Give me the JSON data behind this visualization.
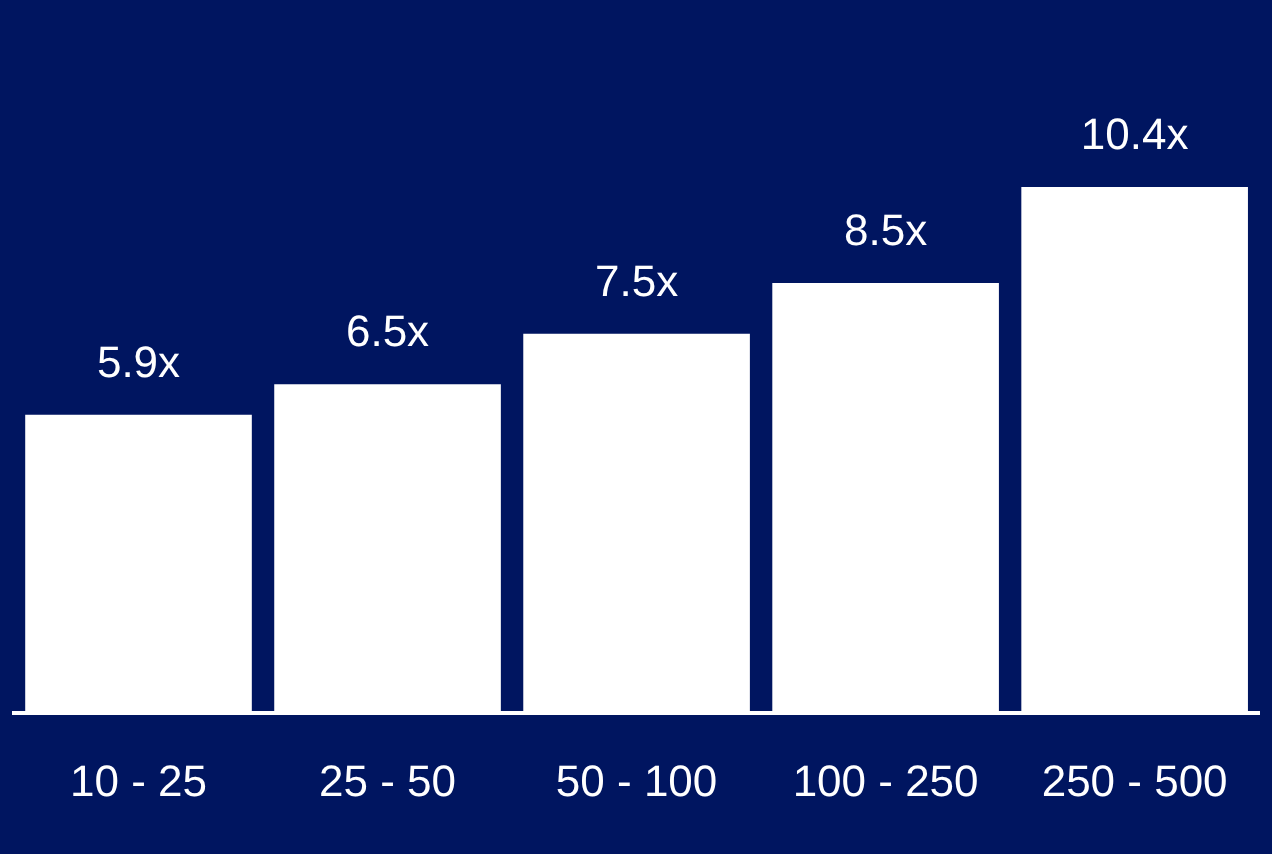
{
  "chart_data": {
    "type": "bar",
    "categories": [
      "10 - 25",
      "25 - 50",
      "50 - 100",
      "100 - 250",
      "250 - 500"
    ],
    "values": [
      5.9,
      6.5,
      7.5,
      8.5,
      10.4
    ],
    "value_labels": [
      "5.9x",
      "6.5x",
      "7.5x",
      "8.5x",
      "10.4x"
    ],
    "color": "#ffffff",
    "tick_labels": "x",
    "grid": false,
    "legend": false
  }
}
